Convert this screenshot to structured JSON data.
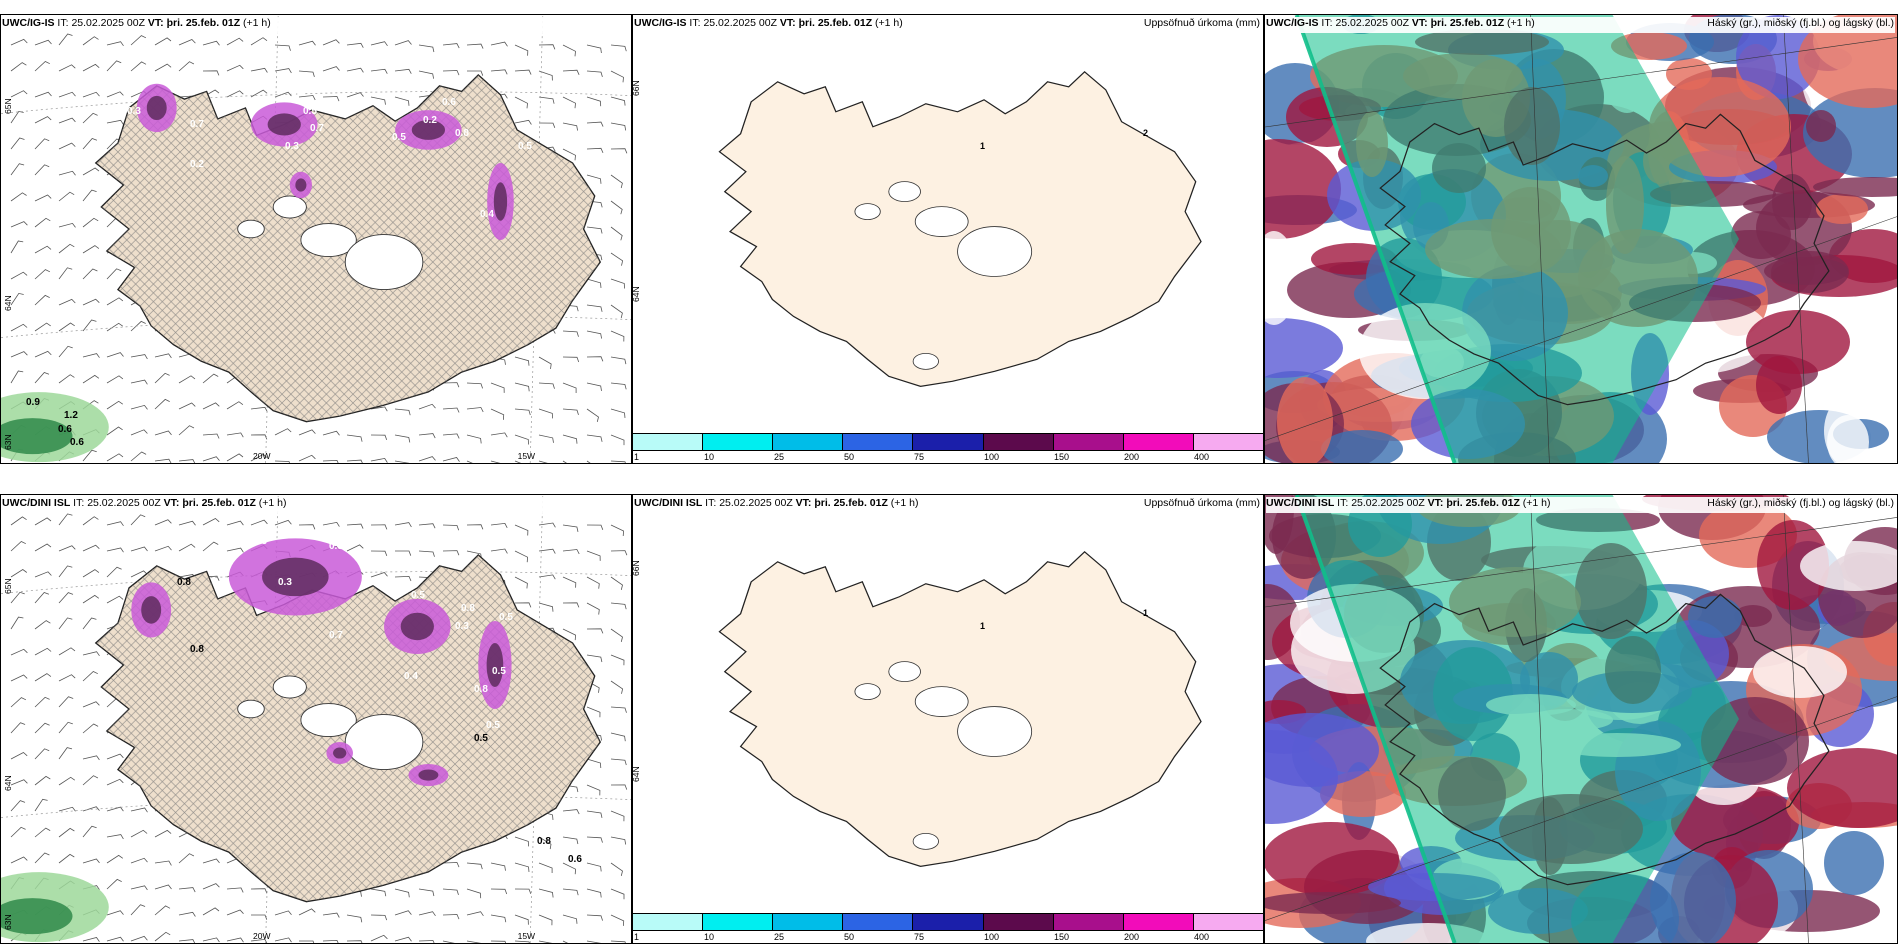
{
  "panels": [
    {
      "model": "UWC/IG-IS",
      "it_label": "IT:",
      "it_value": "25.02.2025 00Z",
      "vt_label": "VT:",
      "vt_value": "þri. 25.feb. 01Z",
      "lead": "(+1 h)",
      "field_title": "",
      "kind": "precip-wind",
      "bottom_ticks": [
        "20W",
        "15W"
      ],
      "side_ticks": [
        "65N",
        "64N",
        "63N"
      ],
      "precip_values": [
        "0.9",
        "1.2",
        "0.6",
        "0.6",
        "0.8",
        "0.3",
        "0.7",
        "0.4",
        "0.5",
        "0.2",
        "0.6",
        "0.8",
        "0.5",
        "0.4",
        "0.3",
        "0.5",
        "0.2",
        "0.7"
      ]
    },
    {
      "model": "UWC/IG-IS",
      "it_label": "IT:",
      "it_value": "25.02.2025 00Z",
      "vt_label": "VT:",
      "vt_value": "þri. 25.feb. 01Z",
      "lead": "(+1 h)",
      "field_title": "Uppsöfnuð úrkoma (mm)",
      "kind": "accum",
      "side_ticks": [
        "66N",
        "64N"
      ],
      "contour_values": [
        "1",
        "2"
      ]
    },
    {
      "model": "UWC/IG-IS",
      "it_label": "IT:",
      "it_value": "25.02.2025 00Z",
      "vt_label": "VT:",
      "vt_value": "þri. 25.feb. 01Z",
      "lead": "(+1 h)",
      "field_title": "Háský (gr.), miðský (fj.bl.) og lágský (bl.)",
      "kind": "cloud"
    },
    {
      "model": "UWC/DINI ISL",
      "it_label": "IT:",
      "it_value": "25.02.2025 00Z",
      "vt_label": "VT:",
      "vt_value": "þri. 25.feb. 01Z",
      "lead": "(+1 h)",
      "field_title": "",
      "kind": "precip-wind",
      "bottom_ticks": [
        "20W",
        "15W"
      ],
      "side_ticks": [
        "65N",
        "64N",
        "63N"
      ],
      "precip_values": [
        "0.3",
        "0.3",
        "0.3",
        "0.3",
        "0.5",
        "0.8",
        "0.5",
        "0.8",
        "0.5",
        "0.3",
        "0.7",
        "0.4",
        "0.5",
        "0.8",
        "0.6",
        "0.5",
        "0.8",
        "0.8"
      ]
    },
    {
      "model": "UWC/DINI ISL",
      "it_label": "IT:",
      "it_value": "25.02.2025 00Z",
      "vt_label": "VT:",
      "vt_value": "þri. 25.feb. 01Z",
      "lead": "(+1 h)",
      "field_title": "Uppsöfnuð úrkoma (mm)",
      "kind": "accum",
      "side_ticks": [
        "66N",
        "64N"
      ],
      "contour_values": [
        "1",
        "1"
      ]
    },
    {
      "model": "UWC/DINI ISL",
      "it_label": "IT:",
      "it_value": "25.02.2025 00Z",
      "vt_label": "VT:",
      "vt_value": "þri. 25.feb. 01Z",
      "lead": "(+1 h)",
      "field_title": "Háský (gr.), miðský (fj.bl.) og lágský (bl.)",
      "kind": "cloud"
    }
  ],
  "colorbar": {
    "labels": [
      "1",
      "10",
      "25",
      "50",
      "75",
      "100",
      "150",
      "200",
      "400"
    ],
    "colors": [
      "#b8fbf8",
      "#00eef0",
      "#00bde8",
      "#2c64e4",
      "#1b1faa",
      "#5c0a4c",
      "#a80f8c",
      "#f20cba",
      "#f6aaf0"
    ]
  },
  "colors": {
    "land": "#eedfcc",
    "land_accum": "#fdf1e2",
    "precip_light": "#c95ad8",
    "precip_dark": "#5e2c5e",
    "precip_light_green": "#9ed89a",
    "precip_dark_green": "#2f8a4a",
    "cloud_high": "#0fbf8a",
    "cloud_mid": "#5a5ad4",
    "cloud_low": "#a0163e"
  }
}
